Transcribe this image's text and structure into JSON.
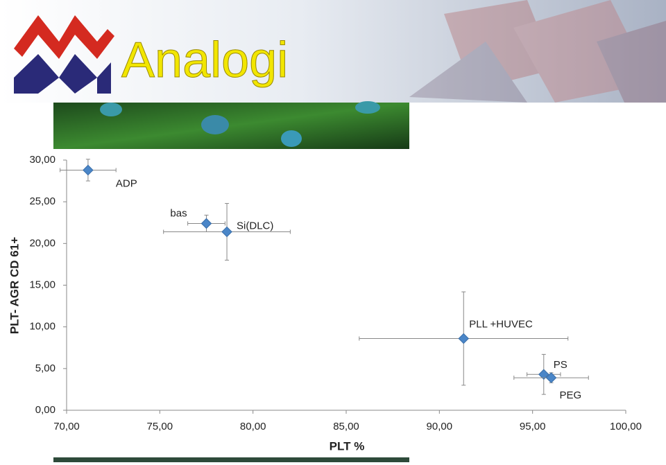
{
  "header": {
    "title": "Analogi"
  },
  "chart_data": {
    "type": "scatter",
    "x_label": "PLT %",
    "y_label": "PLT- AGR CD 61+",
    "xlim": [
      70,
      100
    ],
    "ylim": [
      0,
      30
    ],
    "xticks": [
      {
        "value": 70,
        "label": "70,00"
      },
      {
        "value": 75,
        "label": "75,00"
      },
      {
        "value": 80,
        "label": "80,00"
      },
      {
        "value": 85,
        "label": "85,00"
      },
      {
        "value": 90,
        "label": "90,00"
      },
      {
        "value": 95,
        "label": "95,00"
      },
      {
        "value": 100,
        "label": "100,00"
      }
    ],
    "yticks": [
      {
        "value": 0,
        "label": "0,00"
      },
      {
        "value": 5,
        "label": "5,00"
      },
      {
        "value": 10,
        "label": "10,00"
      },
      {
        "value": 15,
        "label": "15,00"
      },
      {
        "value": 20,
        "label": "20,00"
      },
      {
        "value": 25,
        "label": "25,00"
      },
      {
        "value": 30,
        "label": "30,00"
      }
    ],
    "color": "#4a86c8",
    "point_labels": [
      "ADP",
      "bas",
      "Si(DLC)",
      "PLL +HUVEC",
      "PS",
      "PEG"
    ],
    "x": [
      71.15,
      77.5,
      78.6,
      91.3,
      95.6,
      96.0
    ],
    "values": [
      28.8,
      22.4,
      21.4,
      8.6,
      4.3,
      3.9
    ],
    "x_errors": [
      1.5,
      1.0,
      3.4,
      5.6,
      0.9,
      2.0
    ],
    "y_errors": [
      1.3,
      1.0,
      3.4,
      5.6,
      2.4,
      0.6
    ]
  }
}
